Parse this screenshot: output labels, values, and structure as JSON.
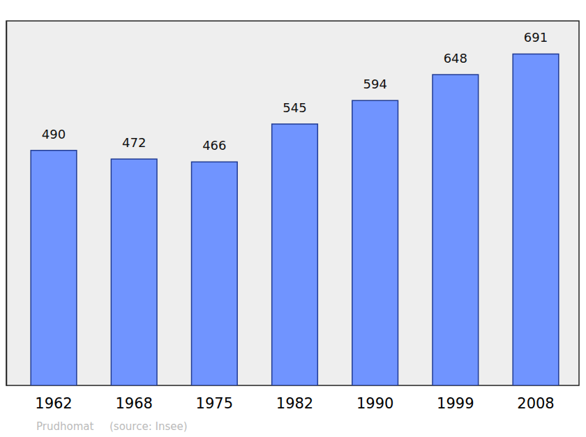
{
  "chart_data": {
    "type": "bar",
    "categories": [
      "1962",
      "1968",
      "1975",
      "1982",
      "1990",
      "1999",
      "2008"
    ],
    "values": [
      490,
      472,
      466,
      545,
      594,
      648,
      691
    ],
    "color": "#7094ff",
    "ylim": [
      0,
      760
    ],
    "grid": false,
    "data_labels": true,
    "tick_labels": "x",
    "annotations": [
      "Prudhomat",
      "(source: Insee)"
    ]
  }
}
